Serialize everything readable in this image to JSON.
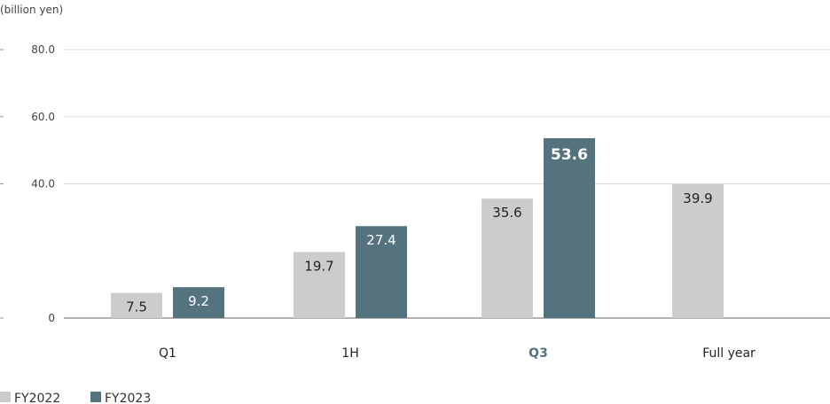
{
  "chart_data": {
    "type": "bar",
    "unit_label": "(billion yen)",
    "categories": [
      "Q1",
      "1H",
      "Q3",
      "Full year"
    ],
    "highlight_category": "Q3",
    "series": [
      {
        "name": "FY2022",
        "color": "#cccccc",
        "values": [
          7.5,
          19.7,
          35.6,
          39.9
        ]
      },
      {
        "name": "FY2023",
        "color": "#55737f",
        "values": [
          9.2,
          27.4,
          53.6,
          null
        ]
      }
    ],
    "y_ticks": [
      {
        "value": 0,
        "label": "0"
      },
      {
        "value": 40,
        "label": "40.0"
      },
      {
        "value": 60,
        "label": "60.0"
      },
      {
        "value": 80,
        "label": "80.0"
      }
    ],
    "ylim": [
      0,
      80
    ],
    "grid": true,
    "legend_position": "bottom-left",
    "value_labels": [
      [
        "7.5",
        "19.7",
        "35.6",
        "39.9"
      ],
      [
        "9.2",
        "27.4",
        "53.6",
        null
      ]
    ],
    "emphasized_value": "53.6"
  }
}
